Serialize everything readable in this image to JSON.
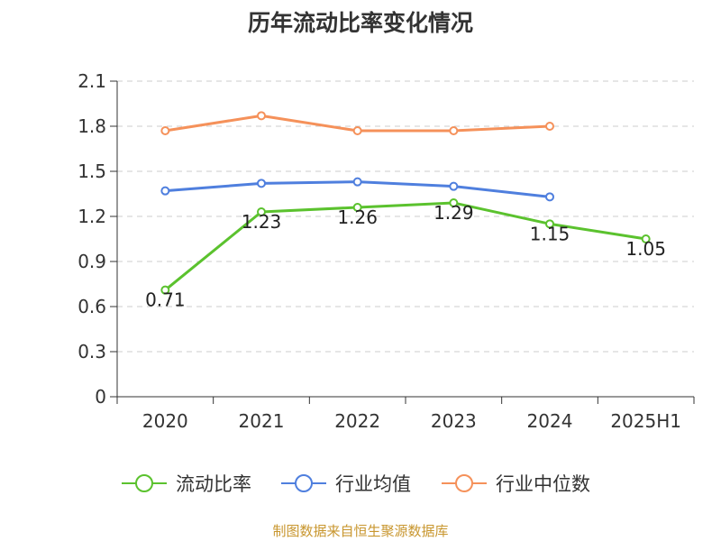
{
  "chart_data": {
    "type": "line",
    "title": "历年流动比率变化情况",
    "categories": [
      "2020",
      "2021",
      "2022",
      "2023",
      "2024",
      "2025H1"
    ],
    "ylim": [
      0,
      2.1
    ],
    "yticks": [
      "0",
      "0.3",
      "0.6",
      "0.9",
      "1.2",
      "1.5",
      "1.8",
      "2.1"
    ],
    "grid": true,
    "legend_position": "bottom",
    "series": [
      {
        "name": "流动比率",
        "color": "#5bc22e",
        "values": [
          0.71,
          1.23,
          1.26,
          1.29,
          1.15,
          1.05
        ],
        "labels": [
          "0.71",
          "1.23",
          "1.26",
          "1.29",
          "1.15",
          "1.05"
        ]
      },
      {
        "name": "行业均值",
        "color": "#4f7fde",
        "values": [
          1.37,
          1.42,
          1.43,
          1.4,
          1.33,
          null
        ]
      },
      {
        "name": "行业中位数",
        "color": "#f5915a",
        "values": [
          1.77,
          1.87,
          1.77,
          1.77,
          1.8,
          null
        ]
      }
    ]
  },
  "footer": {
    "source": "制图数据来自恒生聚源数据库"
  }
}
